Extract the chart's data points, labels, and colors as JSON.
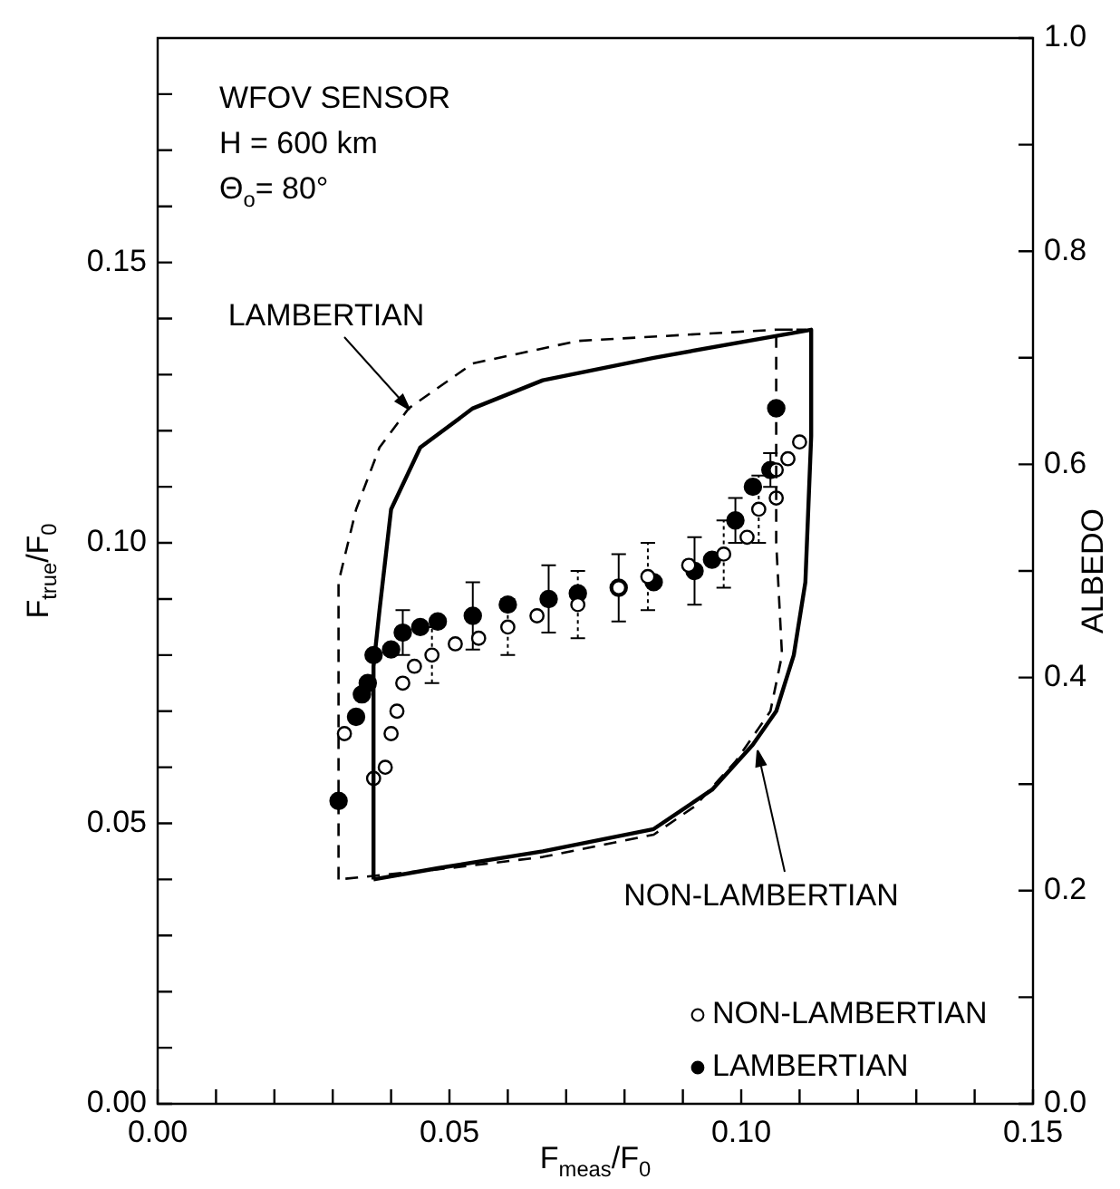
{
  "chart_data": {
    "type": "scatter",
    "xlabel": "F$_{meas}$/F$_{0}$",
    "ylabel": "F$_{true}$/F$_{0}$",
    "y2label": "ALBEDO",
    "xlim": [
      0,
      0.15
    ],
    "ylim": [
      0,
      0.19
    ],
    "y2lim": [
      0,
      1
    ],
    "xticks": [
      {
        "value": 0,
        "label": "0.00"
      },
      {
        "value": 0.01,
        "label": null
      },
      {
        "value": 0.02,
        "label": null
      },
      {
        "value": 0.03,
        "label": null
      },
      {
        "value": 0.04,
        "label": null
      },
      {
        "value": 0.05,
        "label": "0.05"
      },
      {
        "value": 0.06,
        "label": null
      },
      {
        "value": 0.07,
        "label": null
      },
      {
        "value": 0.08,
        "label": null
      },
      {
        "value": 0.09,
        "label": null
      },
      {
        "value": 0.1,
        "label": "0.10"
      },
      {
        "value": 0.11,
        "label": null
      },
      {
        "value": 0.12,
        "label": null
      },
      {
        "value": 0.13,
        "label": null
      },
      {
        "value": 0.14,
        "label": null
      },
      {
        "value": 0.15,
        "label": "0.15"
      }
    ],
    "yticks": [
      {
        "value": 0,
        "label": "0.00"
      },
      {
        "value": 0.01,
        "label": null
      },
      {
        "value": 0.02,
        "label": null
      },
      {
        "value": 0.03,
        "label": null
      },
      {
        "value": 0.04,
        "label": null
      },
      {
        "value": 0.05,
        "label": "0.05"
      },
      {
        "value": 0.06,
        "label": null
      },
      {
        "value": 0.07,
        "label": null
      },
      {
        "value": 0.08,
        "label": null
      },
      {
        "value": 0.09,
        "label": null
      },
      {
        "value": 0.1,
        "label": "0.10"
      },
      {
        "value": 0.11,
        "label": null
      },
      {
        "value": 0.12,
        "label": null
      },
      {
        "value": 0.13,
        "label": null
      },
      {
        "value": 0.14,
        "label": null
      },
      {
        "value": 0.15,
        "label": "0.15"
      },
      {
        "value": 0.16,
        "label": null
      },
      {
        "value": 0.17,
        "label": null
      },
      {
        "value": 0.18,
        "label": null
      }
    ],
    "y2ticks": [
      {
        "value": 0,
        "label": "0.0"
      },
      {
        "value": 0.1,
        "label": null
      },
      {
        "value": 0.2,
        "label": "0.2"
      },
      {
        "value": 0.3,
        "label": null
      },
      {
        "value": 0.4,
        "label": "0.4"
      },
      {
        "value": 0.5,
        "label": null
      },
      {
        "value": 0.6,
        "label": "0.6"
      },
      {
        "value": 0.7,
        "label": null
      },
      {
        "value": 0.8,
        "label": "0.8"
      },
      {
        "value": 0.9,
        "label": null
      },
      {
        "value": 1,
        "label": "1.0"
      }
    ],
    "grid": false,
    "legend": "bottom right",
    "marker": "circle",
    "annotations": [
      "WFOV SENSOR",
      "H = 600 km",
      "Θ$_{o}$= 80°",
      "LAMBERTIAN",
      "NON-LAMBERTIAN"
    ],
    "series": [
      {
        "name": "NON-LAMBERTIAN",
        "color": "#ffffff",
        "x": [
          0.032,
          0.037,
          0.039,
          0.04,
          0.041,
          0.042,
          0.044,
          0.047,
          0.051,
          0.055,
          0.06,
          0.065,
          0.072,
          0.079,
          0.084,
          0.091,
          0.097,
          0.101,
          0.103,
          0.106,
          0.106,
          0.108,
          0.11
        ],
        "values": [
          0.066,
          0.058,
          0.06,
          0.066,
          0.07,
          0.075,
          0.078,
          0.08,
          0.082,
          0.083,
          0.085,
          0.087,
          0.089,
          0.092,
          0.094,
          0.096,
          0.098,
          0.101,
          0.106,
          0.108,
          0.113,
          0.115,
          0.118
        ],
        "errors": [
          null,
          null,
          null,
          null,
          null,
          null,
          null,
          0.005,
          null,
          null,
          0.005,
          null,
          0.006,
          null,
          0.006,
          null,
          0.006,
          null,
          0.006,
          null,
          null,
          null,
          null
        ]
      },
      {
        "name": "LAMBERTIAN",
        "color": "#000000",
        "x": [
          0.031,
          0.034,
          0.035,
          0.036,
          0.037,
          0.04,
          0.042,
          0.045,
          0.048,
          0.054,
          0.06,
          0.067,
          0.072,
          0.079,
          0.085,
          0.092,
          0.095,
          0.099,
          0.102,
          0.105,
          0.106
        ],
        "values": [
          0.054,
          0.069,
          0.073,
          0.075,
          0.08,
          0.081,
          0.084,
          0.085,
          0.086,
          0.087,
          0.089,
          0.09,
          0.091,
          0.092,
          0.093,
          0.095,
          0.097,
          0.104,
          0.11,
          0.113,
          0.124
        ],
        "errors": [
          null,
          null,
          null,
          null,
          null,
          null,
          0.004,
          null,
          null,
          0.006,
          null,
          0.006,
          null,
          0.006,
          null,
          0.006,
          null,
          0.004,
          null,
          0.003,
          null
        ]
      }
    ]
  }
}
